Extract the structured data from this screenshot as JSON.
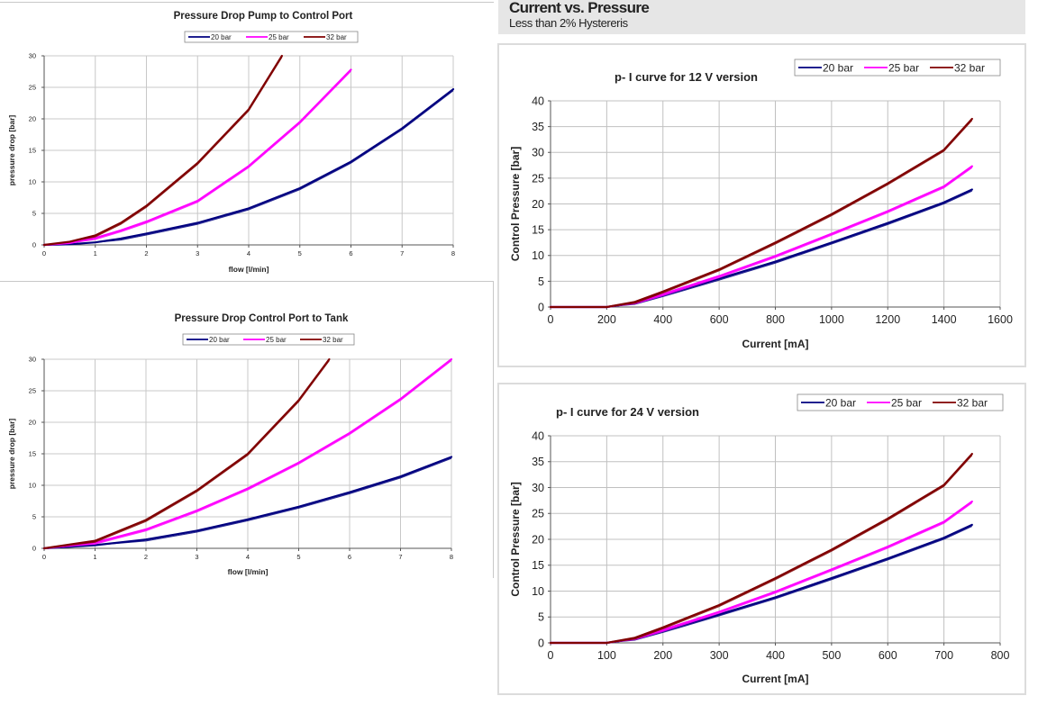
{
  "section": {
    "title": "Current vs. Pressure",
    "subtitle": "Less than 2% Hystereris"
  },
  "colors": {
    "20 bar": "#00007f",
    "25 bar": "#ff00ff",
    "32 bar": "#800000"
  },
  "chart_data": [
    {
      "type": "line",
      "title": "Pressure Drop Pump to Control Port",
      "xlabel": "flow [l/min]",
      "ylabel": "pressure drop [bar]",
      "xlim": [
        0,
        8
      ],
      "ylim": [
        0,
        30
      ],
      "xticks": [
        0,
        1,
        2,
        3,
        4,
        5,
        6,
        7,
        8
      ],
      "yticks": [
        0,
        5,
        10,
        15,
        20,
        25,
        30
      ],
      "legend": "top",
      "grid": true,
      "series": [
        {
          "name": "20 bar",
          "x": [
            0,
            0.5,
            1,
            1.5,
            2,
            3,
            4,
            5,
            6,
            7,
            8
          ],
          "y": [
            0,
            0.1,
            0.4,
            1.0,
            1.8,
            3.5,
            5.8,
            9.0,
            13.2,
            18.5,
            24.7
          ]
        },
        {
          "name": "25 bar",
          "x": [
            0,
            0.5,
            1,
            1.5,
            2,
            3,
            4,
            5,
            6
          ],
          "y": [
            0,
            0.3,
            1.1,
            2.3,
            3.7,
            7.0,
            12.5,
            19.5,
            27.8
          ]
        },
        {
          "name": "32 bar",
          "x": [
            0,
            0.5,
            1,
            1.5,
            2,
            3,
            4,
            4.65
          ],
          "y": [
            0,
            0.5,
            1.5,
            3.5,
            6.2,
            13.0,
            21.5,
            30
          ]
        }
      ]
    },
    {
      "type": "line",
      "title": "Pressure Drop Control Port to Tank",
      "xlabel": "flow [l/min]",
      "ylabel": "pressure drop [bar]",
      "xlim": [
        0,
        8
      ],
      "ylim": [
        0,
        30
      ],
      "xticks": [
        0,
        1,
        2,
        3,
        4,
        5,
        6,
        7,
        8
      ],
      "yticks": [
        0,
        5,
        10,
        15,
        20,
        25,
        30
      ],
      "legend": "top",
      "grid": true,
      "series": [
        {
          "name": "20 bar",
          "x": [
            0,
            1,
            2,
            3,
            4,
            5,
            6,
            7,
            8
          ],
          "y": [
            0,
            0.5,
            1.4,
            2.8,
            4.6,
            6.6,
            8.9,
            11.4,
            14.5
          ]
        },
        {
          "name": "25 bar",
          "x": [
            0,
            1,
            2,
            3,
            4,
            5,
            6,
            7,
            8
          ],
          "y": [
            0,
            0.9,
            3.0,
            6.0,
            9.5,
            13.6,
            18.3,
            23.7,
            30
          ]
        },
        {
          "name": "32 bar",
          "x": [
            0,
            1,
            2,
            3,
            4,
            5,
            5.6
          ],
          "y": [
            0,
            1.2,
            4.5,
            9.2,
            15.0,
            23.5,
            30
          ]
        }
      ]
    },
    {
      "type": "line",
      "title": "p- I curve for 12 V version",
      "xlabel": "Current [mA]",
      "ylabel": "Control  Pressure [bar]",
      "xlim": [
        0,
        1600
      ],
      "ylim": [
        0,
        40
      ],
      "xticks": [
        0,
        200,
        400,
        600,
        800,
        1000,
        1200,
        1400,
        1600
      ],
      "yticks": [
        0,
        5,
        10,
        15,
        20,
        25,
        30,
        35,
        40
      ],
      "legend": "top-right",
      "grid": true,
      "series": [
        {
          "name": "20 bar",
          "x": [
            0,
            200,
            300,
            400,
            600,
            800,
            1000,
            1200,
            1400,
            1500
          ],
          "y": [
            0,
            0,
            0.8,
            2.3,
            5.5,
            8.8,
            12.5,
            16.3,
            20.3,
            22.8
          ]
        },
        {
          "name": "25 bar",
          "x": [
            0,
            200,
            300,
            400,
            600,
            800,
            1000,
            1200,
            1400,
            1500
          ],
          "y": [
            0,
            0,
            0.9,
            2.5,
            6.0,
            9.9,
            14.2,
            18.6,
            23.4,
            27.3
          ]
        },
        {
          "name": "32 bar",
          "x": [
            0,
            200,
            300,
            400,
            600,
            800,
            1000,
            1200,
            1400,
            1500
          ],
          "y": [
            0,
            0,
            1.0,
            3.0,
            7.3,
            12.5,
            18.0,
            24.0,
            30.5,
            36.5
          ]
        }
      ]
    },
    {
      "type": "line",
      "title": "p- I curve for 24 V version",
      "xlabel": "Current [mA]",
      "ylabel": "Control  Pressure [bar]",
      "xlim": [
        0,
        800
      ],
      "ylim": [
        0,
        40
      ],
      "xticks": [
        0,
        100,
        200,
        300,
        400,
        500,
        600,
        700,
        800
      ],
      "yticks": [
        0,
        5,
        10,
        15,
        20,
        25,
        30,
        35,
        40
      ],
      "legend": "top-right",
      "grid": true,
      "series": [
        {
          "name": "20 bar",
          "x": [
            0,
            100,
            150,
            200,
            300,
            400,
            500,
            600,
            700,
            750
          ],
          "y": [
            0,
            0,
            0.8,
            2.3,
            5.5,
            8.8,
            12.5,
            16.3,
            20.3,
            22.8
          ]
        },
        {
          "name": "25 bar",
          "x": [
            0,
            100,
            150,
            200,
            300,
            400,
            500,
            600,
            700,
            750
          ],
          "y": [
            0,
            0,
            0.9,
            2.5,
            6.0,
            9.9,
            14.2,
            18.6,
            23.4,
            27.3
          ]
        },
        {
          "name": "32 bar",
          "x": [
            0,
            100,
            150,
            200,
            300,
            400,
            500,
            600,
            700,
            750
          ],
          "y": [
            0,
            0,
            1.0,
            3.0,
            7.3,
            12.5,
            18.0,
            24.0,
            30.5,
            36.5
          ]
        }
      ]
    }
  ]
}
